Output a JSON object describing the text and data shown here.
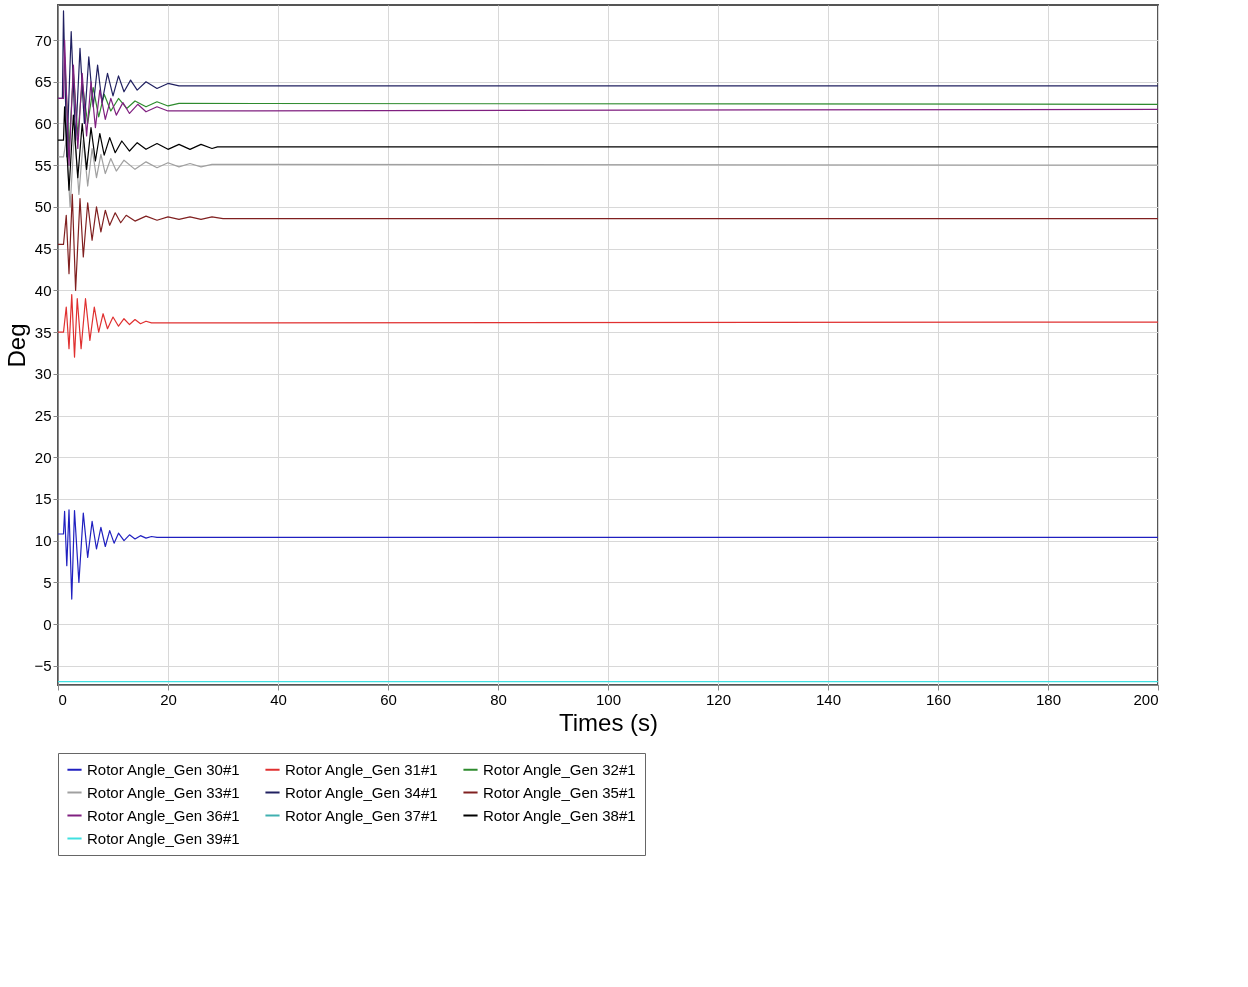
{
  "chart_data": {
    "type": "line",
    "xlabel": "Times (s)",
    "ylabel": "Deg",
    "xlim": [
      0,
      200
    ],
    "xticks": [
      0,
      20,
      40,
      60,
      80,
      100,
      120,
      140,
      160,
      180,
      200
    ],
    "ylim": [
      -7.3,
      74.2
    ],
    "yticks": [
      -5,
      0,
      5,
      10,
      15,
      20,
      25,
      30,
      35,
      40,
      45,
      50,
      55,
      60,
      65,
      70
    ],
    "grid": true,
    "legend": "bottom",
    "line_style": "solid",
    "series": [
      {
        "name": "Rotor Angle_Gen 30#1",
        "color": "#2020c0",
        "x": [
          0,
          1,
          1.2,
          1.6,
          2,
          2.5,
          3,
          3.8,
          4.6,
          5.4,
          6.2,
          7,
          7.8,
          8.6,
          9.4,
          10.2,
          11,
          12,
          13,
          14,
          15,
          16,
          17,
          18,
          200
        ],
        "values": [
          10.8,
          10.8,
          13.5,
          7,
          13.7,
          3,
          13.6,
          5,
          13.3,
          8,
          12.3,
          9,
          11.6,
          9.3,
          11.2,
          9.7,
          10.9,
          10,
          10.7,
          10.2,
          10.6,
          10.3,
          10.5,
          10.4,
          10.4
        ]
      },
      {
        "name": "Rotor Angle_Gen 31#1",
        "color": "#e03030",
        "x": [
          0,
          1,
          1.5,
          2,
          2.5,
          3,
          3.5,
          4.2,
          5,
          5.8,
          6.6,
          7.4,
          8.2,
          9,
          10,
          11,
          12,
          13,
          14,
          15,
          16,
          17,
          200
        ],
        "values": [
          35,
          35,
          38,
          33,
          39.5,
          32,
          39,
          33,
          39,
          34,
          38,
          35,
          37.2,
          35.4,
          36.8,
          35.7,
          36.6,
          35.9,
          36.5,
          36,
          36.3,
          36.1,
          36.2
        ]
      },
      {
        "name": "Rotor Angle_Gen 32#1",
        "color": "#2e8b2e",
        "x": [
          1.2,
          2,
          2.8,
          3.6,
          4.4,
          5.4,
          6.4,
          7.4,
          8.4,
          9.6,
          11,
          12.5,
          14,
          16,
          18,
          20,
          22,
          200
        ],
        "values": [
          68,
          57,
          66,
          58.5,
          65,
          60,
          64.3,
          60.8,
          63.5,
          61.5,
          63,
          61.8,
          62.7,
          62,
          62.6,
          62.1,
          62.4,
          62.3
        ]
      },
      {
        "name": "Rotor Angle_Gen 33#1",
        "color": "#a0a0a0",
        "x": [
          0,
          1,
          1.5,
          2.2,
          3,
          3.8,
          4.6,
          5.4,
          6.2,
          7,
          7.8,
          8.6,
          9.6,
          10.6,
          12,
          14,
          16,
          18,
          20,
          22,
          24,
          26,
          28,
          200
        ],
        "values": [
          56,
          56,
          58,
          50,
          59,
          51.5,
          58,
          52.5,
          57,
          53.5,
          56.3,
          54,
          55.8,
          54.3,
          55.6,
          54.5,
          55.4,
          54.7,
          55.3,
          54.8,
          55.2,
          54.8,
          55.1,
          55
        ]
      },
      {
        "name": "Rotor Angle_Gen 34#1",
        "color": "#202060",
        "x": [
          0,
          0.8,
          1,
          1.6,
          2.4,
          3.2,
          4,
          4.8,
          5.6,
          6.4,
          7.2,
          8,
          9,
          10,
          11,
          12,
          13.2,
          14.4,
          16,
          18,
          20,
          22,
          200
        ],
        "values": [
          63,
          63,
          73.5,
          56,
          71,
          58,
          69,
          60,
          68,
          62,
          67,
          62.5,
          66,
          63.3,
          65.7,
          63.8,
          65.2,
          64,
          65,
          64.2,
          64.8,
          64.5,
          64.5
        ]
      },
      {
        "name": "Rotor Angle_Gen 35#1",
        "color": "#802020",
        "x": [
          0,
          1,
          1.5,
          2,
          2.6,
          3.2,
          4,
          4.6,
          5.4,
          6.2,
          7,
          7.8,
          8.6,
          9.4,
          10.4,
          11.4,
          12.4,
          14,
          16,
          18,
          20,
          22,
          24,
          26,
          28,
          30,
          200
        ],
        "values": [
          45.5,
          45.5,
          49,
          42,
          51.5,
          40,
          51,
          44,
          50.5,
          46,
          50,
          47,
          49.6,
          47.8,
          49.3,
          48.1,
          49,
          48.3,
          48.9,
          48.4,
          48.8,
          48.5,
          48.8,
          48.5,
          48.8,
          48.6,
          48.6
        ]
      },
      {
        "name": "Rotor Angle_Gen 36#1",
        "color": "#802080",
        "x": [
          0,
          1,
          1.2,
          2,
          2.8,
          3.6,
          4.4,
          5.2,
          6,
          6.8,
          7.6,
          8.6,
          9.6,
          10.6,
          11.8,
          13,
          14.5,
          16,
          18,
          20,
          200
        ],
        "values": [
          63,
          63,
          70,
          55,
          67,
          57,
          66,
          58.5,
          65,
          59.5,
          64,
          60.5,
          63,
          61,
          62.5,
          61.2,
          62.3,
          61.4,
          62,
          61.5,
          61.7
        ]
      },
      {
        "name": "Rotor Angle_Gen 37#1",
        "color": "#40b0b0"
      },
      {
        "name": "Rotor Angle_Gen 38#1",
        "color": "#000000",
        "x": [
          0,
          1,
          1.2,
          2,
          2.8,
          3.6,
          4.4,
          5.2,
          6,
          6.8,
          7.6,
          8.4,
          9.4,
          10.4,
          11.6,
          13,
          14.4,
          16,
          18,
          20,
          22,
          24,
          26,
          28,
          29,
          200
        ],
        "values": [
          58,
          58,
          62,
          52,
          61,
          53.5,
          60,
          54.5,
          59.5,
          55.5,
          58.8,
          56.2,
          58.3,
          56.5,
          57.9,
          56.7,
          57.7,
          56.9,
          57.6,
          56.9,
          57.5,
          56.9,
          57.5,
          57,
          57.2,
          57.2
        ]
      },
      {
        "name": "Rotor Angle_Gen 39#1",
        "color": "#40e0e0",
        "x": [
          0,
          200
        ],
        "values": [
          -6.9,
          -6.9
        ]
      }
    ]
  }
}
